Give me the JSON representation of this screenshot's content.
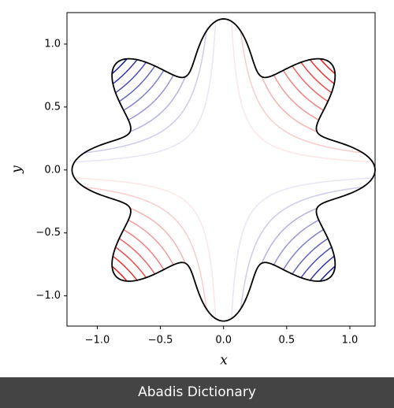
{
  "chart_data": {
    "type": "contour",
    "x_label": "x",
    "y_label": "y",
    "xlim": [
      -1.24,
      1.2
    ],
    "ylim": [
      -1.24,
      1.25
    ],
    "xticks": [
      {
        "value": -1,
        "label": "−1.0"
      },
      {
        "value": -0.5,
        "label": "−0.5"
      },
      {
        "value": 0,
        "label": "0.0"
      },
      {
        "value": 0.5,
        "label": "0.5"
      },
      {
        "value": 1,
        "label": "1.0"
      }
    ],
    "yticks": [
      {
        "value": -1,
        "label": "−1.0"
      },
      {
        "value": -0.5,
        "label": "−0.5"
      },
      {
        "value": 0,
        "label": "0.0"
      },
      {
        "value": 0.5,
        "label": "0.5"
      },
      {
        "value": 1,
        "label": "1.0"
      }
    ],
    "boundary": {
      "r0": 1,
      "amplitude": 0.2,
      "lobes": 8,
      "color": "#000000"
    },
    "levels": [
      -0.75,
      -0.675,
      -0.6,
      -0.525,
      -0.45,
      -0.375,
      -0.3,
      -0.225,
      -0.15,
      -0.075,
      0.075,
      0.15,
      0.225,
      0.3,
      0.375,
      0.45,
      0.525,
      0.6,
      0.675,
      0.75
    ]
  },
  "footer": "Abadis Dictionary"
}
